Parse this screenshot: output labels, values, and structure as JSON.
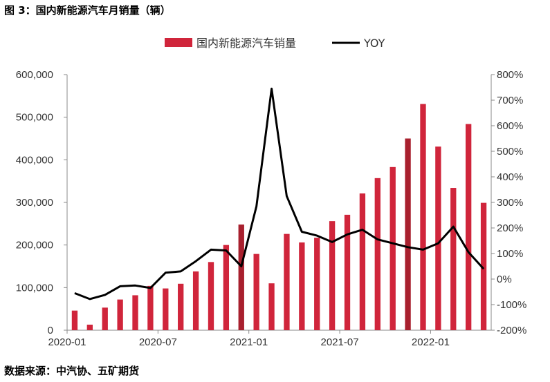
{
  "figure": {
    "title": "图 3：国内新能源汽车月销量（辆）",
    "source": "数据来源：中汽协、五矿期货"
  },
  "colors": {
    "bar": "#d0253b",
    "bar_highlight": "#a8202e",
    "line": "#000000",
    "axis": "#888888"
  },
  "chart_data": {
    "type": "bar",
    "x": [
      "2020-01",
      "2020-02",
      "2020-03",
      "2020-04",
      "2020-05",
      "2020-06",
      "2020-07",
      "2020-08",
      "2020-09",
      "2020-10",
      "2020-11",
      "2020-12",
      "2021-01",
      "2021-02",
      "2021-03",
      "2021-04",
      "2021-05",
      "2021-06",
      "2021-07",
      "2021-08",
      "2021-09",
      "2021-10",
      "2021-11",
      "2021-12",
      "2022-01",
      "2022-02",
      "2022-03",
      "2022-04"
    ],
    "x_tick_labels": [
      {
        "index": 0,
        "label": "2020-01"
      },
      {
        "index": 6,
        "label": "2020-07"
      },
      {
        "index": 12,
        "label": "2021-01"
      },
      {
        "index": 18,
        "label": "2021-07"
      },
      {
        "index": 24,
        "label": "2022-01"
      }
    ],
    "series": [
      {
        "name": "国内新能源汽车销量",
        "type": "bar",
        "axis": "left",
        "values": [
          46000,
          13000,
          53000,
          72000,
          82000,
          104000,
          98000,
          109000,
          138000,
          160000,
          200000,
          248000,
          179000,
          110000,
          226000,
          206000,
          217000,
          256000,
          271000,
          321000,
          357000,
          383000,
          450000,
          531000,
          431000,
          334000,
          484000,
          299000
        ],
        "highlight_index": [
          11,
          22
        ]
      },
      {
        "name": "YOY",
        "type": "line",
        "axis": "right",
        "values": [
          -55,
          -78,
          -62,
          -28,
          -25,
          -35,
          25,
          30,
          70,
          115,
          112,
          50,
          285,
          745,
          325,
          185,
          170,
          145,
          175,
          193,
          155,
          140,
          125,
          115,
          140,
          205,
          105,
          40
        ]
      }
    ],
    "y_left": {
      "lim": [
        0,
        600000
      ],
      "ticks": [
        0,
        100000,
        200000,
        300000,
        400000,
        500000,
        600000
      ],
      "tick_labels": [
        "0",
        "100,000",
        "200,000",
        "300,000",
        "400,000",
        "500,000",
        "600,000"
      ]
    },
    "y_right": {
      "lim": [
        -200,
        800
      ],
      "ticks": [
        -200,
        -100,
        0,
        100,
        200,
        300,
        400,
        500,
        600,
        700,
        800
      ],
      "tick_labels": [
        "-200%",
        "-100%",
        "0%",
        "100%",
        "200%",
        "300%",
        "400%",
        "500%",
        "600%",
        "700%",
        "800%"
      ]
    },
    "legend": {
      "position": "top-center"
    },
    "grid": false
  }
}
